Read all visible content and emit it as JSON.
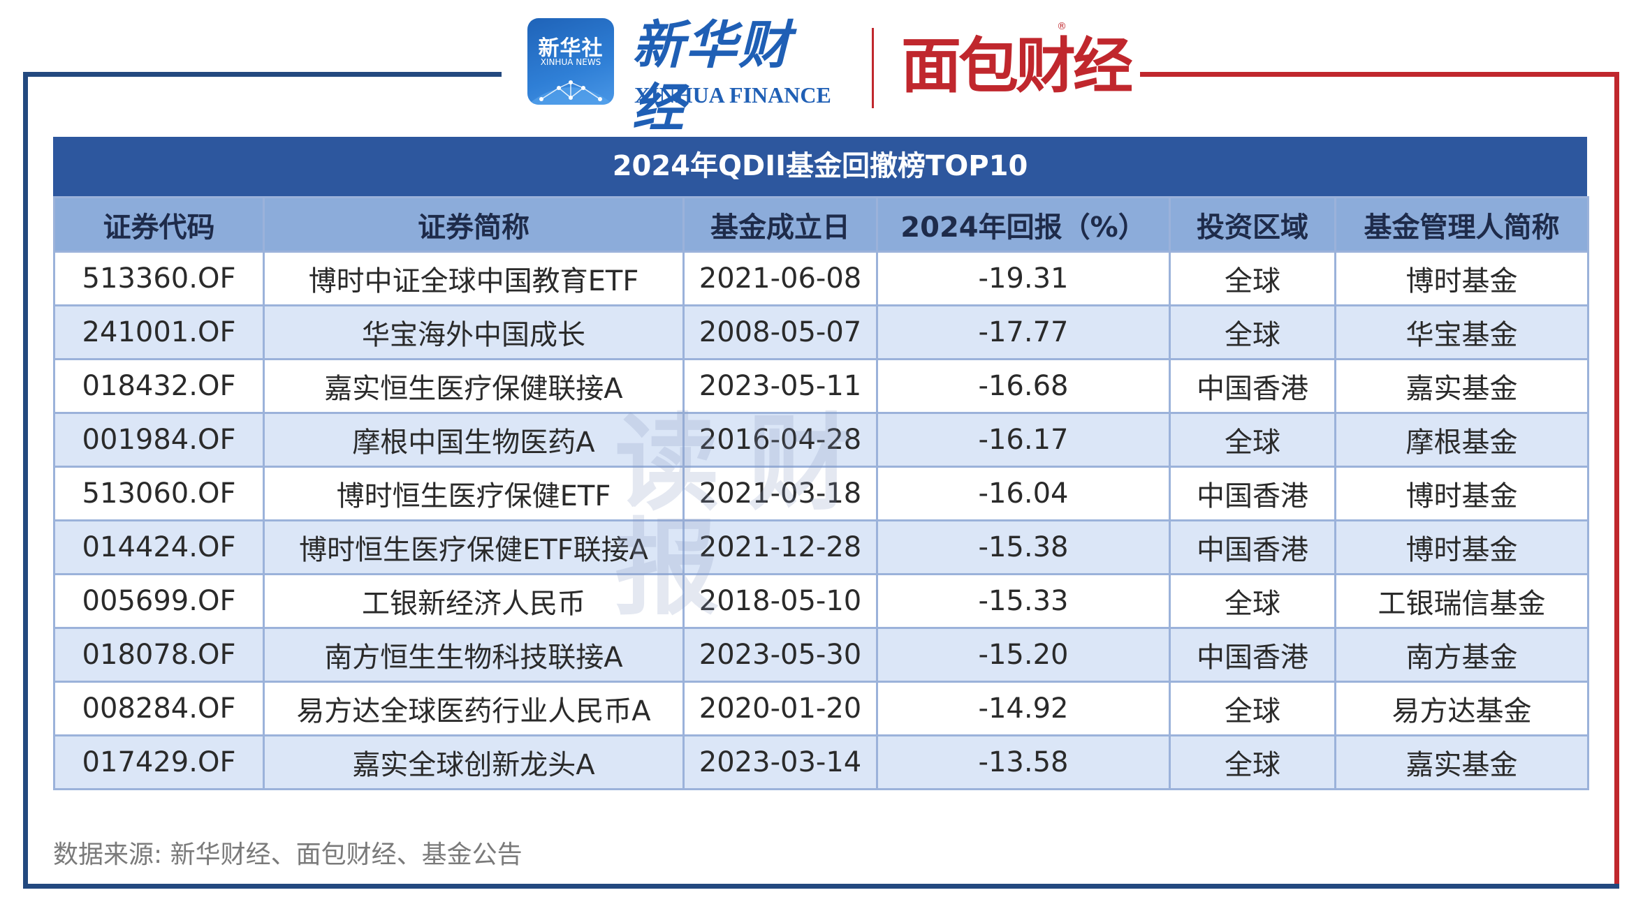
{
  "header": {
    "xinhua_badge_cn": "新华社",
    "xinhua_badge_en": "XINHUA NEWS",
    "xinhua_finance_cn": "新华财经",
    "xinhua_finance_en": "XINHUA FINANCE",
    "mianbao_logo": "面包财经",
    "registered_mark": "®"
  },
  "colors": {
    "frame_left": "#23497f",
    "frame_right": "#c0272d",
    "title_bar": "#2d579e",
    "header_row": "#8cacda",
    "stripe_row": "#dbe6f7"
  },
  "table": {
    "title": "2024年QDII基金回撤榜TOP10",
    "columns": [
      "证券代码",
      "证券简称",
      "基金成立日",
      "2024年回报（%）",
      "投资区域",
      "基金管理人简称"
    ],
    "rows": [
      [
        "513360.OF",
        "博时中证全球中国教育ETF",
        "2021-06-08",
        "-19.31",
        "全球",
        "博时基金"
      ],
      [
        "241001.OF",
        "华宝海外中国成长",
        "2008-05-07",
        "-17.77",
        "全球",
        "华宝基金"
      ],
      [
        "018432.OF",
        "嘉实恒生医疗保健联接A",
        "2023-05-11",
        "-16.68",
        "中国香港",
        "嘉实基金"
      ],
      [
        "001984.OF",
        "摩根中国生物医药A",
        "2016-04-28",
        "-16.17",
        "全球",
        "摩根基金"
      ],
      [
        "513060.OF",
        "博时恒生医疗保健ETF",
        "2021-03-18",
        "-16.04",
        "中国香港",
        "博时基金"
      ],
      [
        "014424.OF",
        "博时恒生医疗保健ETF联接A",
        "2021-12-28",
        "-15.38",
        "中国香港",
        "博时基金"
      ],
      [
        "005699.OF",
        "工银新经济人民币",
        "2018-05-10",
        "-15.33",
        "全球",
        "工银瑞信基金"
      ],
      [
        "018078.OF",
        "南方恒生生物科技联接A",
        "2023-05-30",
        "-15.20",
        "中国香港",
        "南方基金"
      ],
      [
        "008284.OF",
        "易方达全球医药行业人民币A",
        "2020-01-20",
        "-14.92",
        "全球",
        "易方达基金"
      ],
      [
        "017429.OF",
        "嘉实全球创新龙头A",
        "2023-03-14",
        "-13.58",
        "全球",
        "嘉实基金"
      ]
    ]
  },
  "watermark": "读财报",
  "source_note": "数据来源: 新华财经、面包财经、基金公告"
}
